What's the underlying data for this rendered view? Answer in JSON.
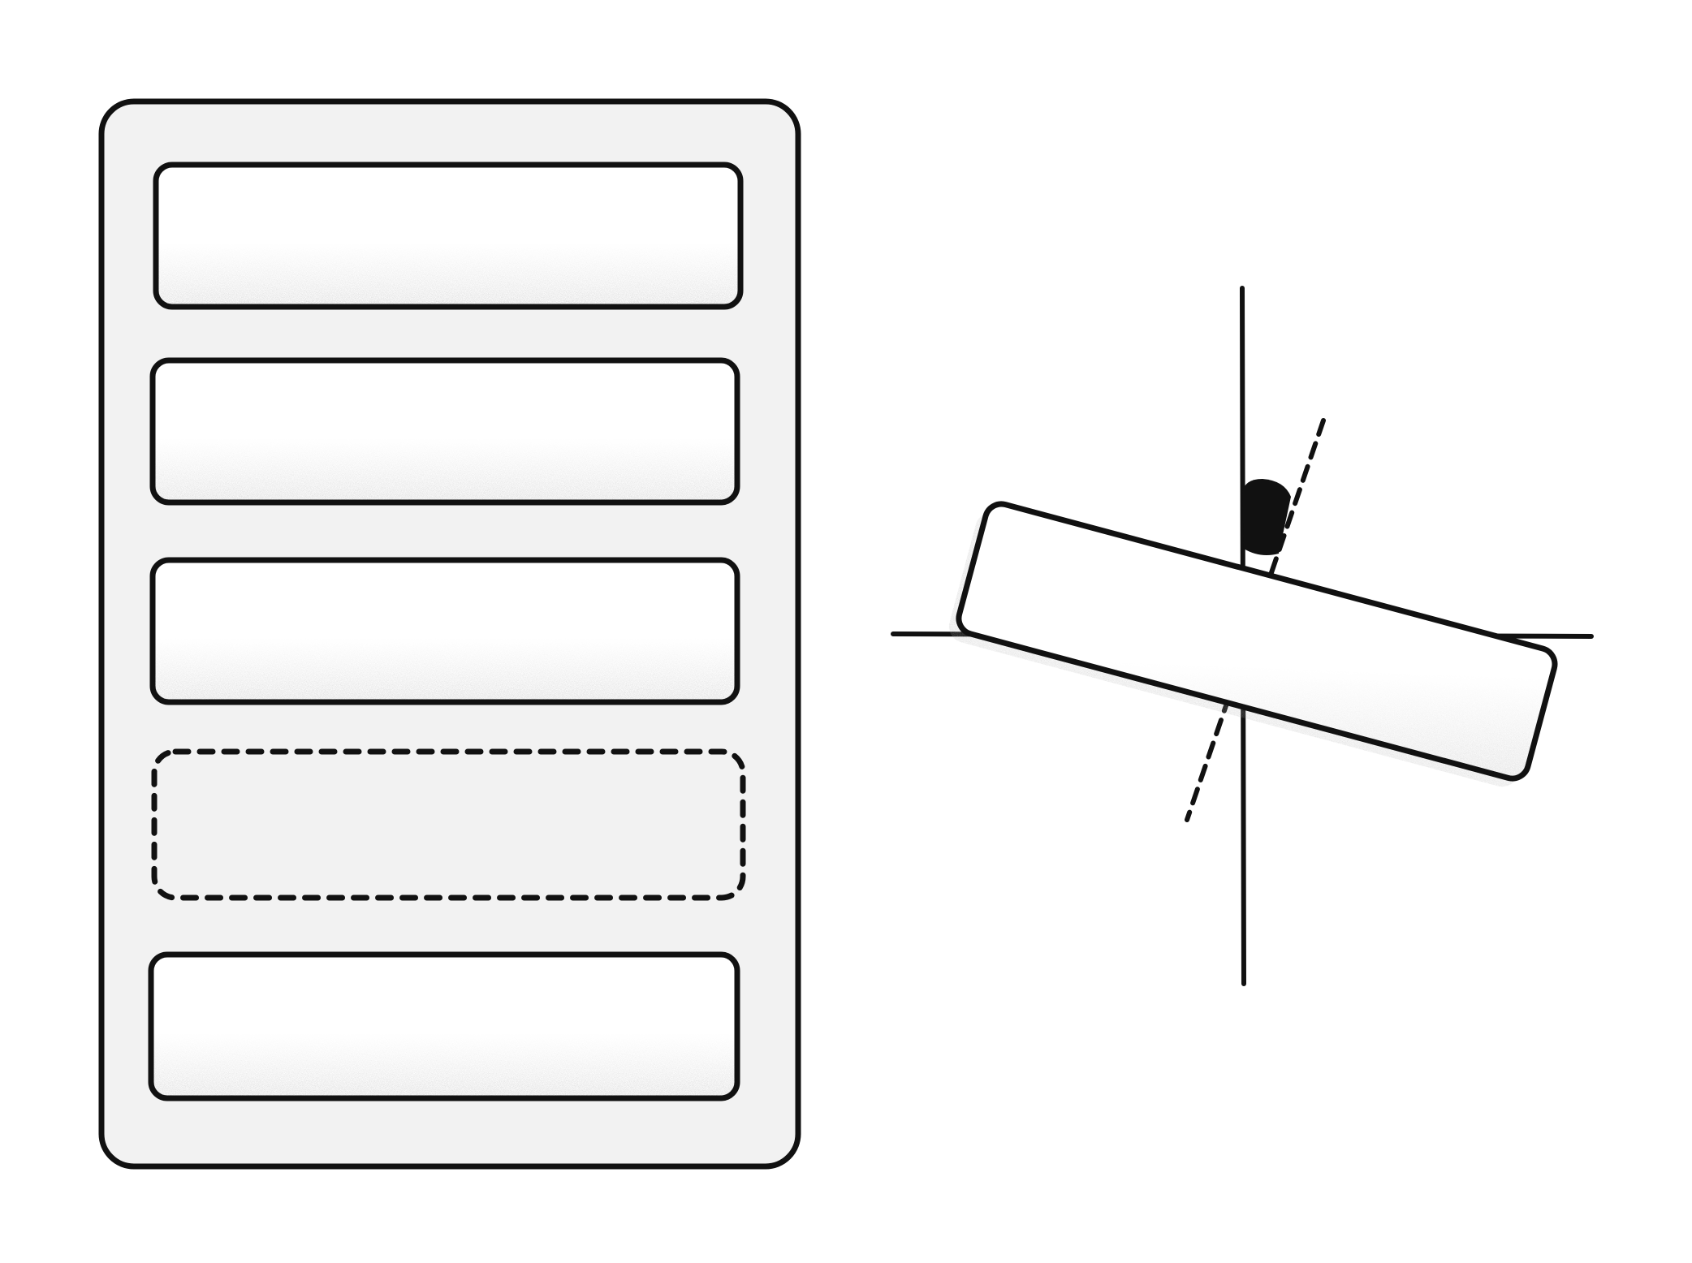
{
  "diagram": {
    "list_panel": {
      "items": [
        {
          "state": "placed"
        },
        {
          "state": "placed"
        },
        {
          "state": "placed"
        },
        {
          "state": "drop-placeholder"
        },
        {
          "state": "placed"
        }
      ],
      "dragged_item": {
        "rotation_deg": 15,
        "guides": [
          "vertical-axis",
          "horizontal-axis",
          "tilted-axis",
          "angle-wedge"
        ]
      }
    },
    "colors": {
      "stroke": "#111111",
      "panel_fill": "#f2f2f2",
      "item_fill": "#ffffff",
      "shadow": "#8a8a8a",
      "wedge": "#111111"
    }
  }
}
